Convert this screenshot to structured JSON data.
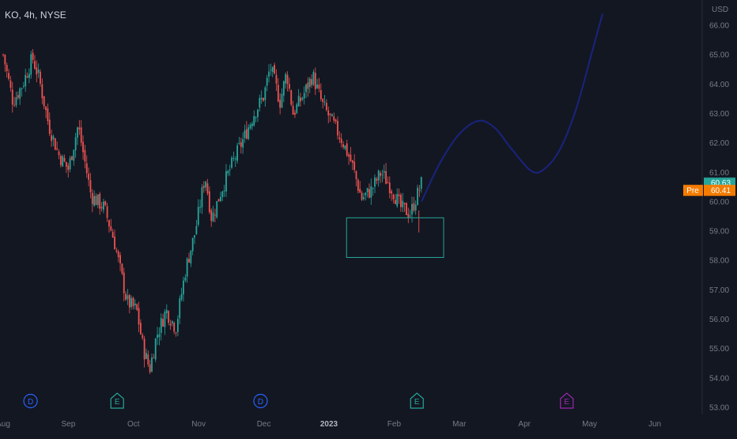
{
  "header": {
    "symbol_title": "KO, 4h, NYSE",
    "currency": "USD"
  },
  "chart_data": {
    "type": "candlestick",
    "symbol": "KO",
    "interval": "4h",
    "exchange": "NYSE",
    "ylim": [
      52.9,
      66.4
    ],
    "y_ticks": [
      "66.00",
      "65.00",
      "64.00",
      "63.00",
      "62.00",
      "61.00",
      "60.00",
      "59.00",
      "58.00",
      "57.00",
      "56.00",
      "55.00",
      "54.00",
      "53.00"
    ],
    "x_ticks": [
      {
        "label": "Aug",
        "x": 0
      },
      {
        "label": "Sep",
        "x": 1
      },
      {
        "label": "Oct",
        "x": 2
      },
      {
        "label": "Nov",
        "x": 3
      },
      {
        "label": "Dec",
        "x": 4
      },
      {
        "label": "2023",
        "x": 5,
        "bold": true
      },
      {
        "label": "Feb",
        "x": 6
      },
      {
        "label": "Mar",
        "x": 7
      },
      {
        "label": "Apr",
        "x": 8
      },
      {
        "label": "May",
        "x": 9
      },
      {
        "label": "Jun",
        "x": 10
      }
    ],
    "close_path": [
      [
        0.0,
        65.0
      ],
      [
        0.15,
        63.4
      ],
      [
        0.3,
        64.0
      ],
      [
        0.45,
        64.9
      ],
      [
        0.55,
        64.2
      ],
      [
        0.7,
        62.6
      ],
      [
        0.85,
        61.6
      ],
      [
        1.0,
        61.1
      ],
      [
        1.15,
        62.6
      ],
      [
        1.35,
        60.2
      ],
      [
        1.55,
        59.8
      ],
      [
        1.7,
        58.7
      ],
      [
        1.9,
        56.6
      ],
      [
        2.05,
        56.3
      ],
      [
        2.15,
        55.0
      ],
      [
        2.25,
        54.3
      ],
      [
        2.35,
        55.4
      ],
      [
        2.5,
        56.3
      ],
      [
        2.65,
        55.7
      ],
      [
        2.8,
        57.7
      ],
      [
        2.95,
        59.0
      ],
      [
        3.1,
        60.9
      ],
      [
        3.2,
        59.4
      ],
      [
        3.35,
        60.4
      ],
      [
        3.5,
        61.2
      ],
      [
        3.7,
        62.2
      ],
      [
        3.85,
        63.0
      ],
      [
        4.0,
        63.6
      ],
      [
        4.1,
        64.6
      ],
      [
        4.25,
        63.4
      ],
      [
        4.35,
        64.4
      ],
      [
        4.45,
        63.0
      ],
      [
        4.6,
        63.6
      ],
      [
        4.75,
        64.3
      ],
      [
        4.9,
        63.3
      ],
      [
        5.05,
        62.7
      ],
      [
        5.2,
        62.1
      ],
      [
        5.35,
        61.3
      ],
      [
        5.5,
        60.1
      ],
      [
        5.65,
        60.4
      ],
      [
        5.8,
        61.0
      ],
      [
        5.95,
        60.5
      ],
      [
        6.1,
        59.8
      ],
      [
        6.25,
        59.6
      ],
      [
        6.35,
        60.2
      ],
      [
        6.42,
        60.63
      ]
    ],
    "last_price": "60.63",
    "premarket": {
      "label": "Pre",
      "value": "60.41"
    },
    "projection": [
      [
        6.42,
        60.0
      ],
      [
        6.7,
        61.3
      ],
      [
        7.0,
        62.3
      ],
      [
        7.3,
        62.75
      ],
      [
        7.55,
        62.5
      ],
      [
        7.8,
        61.8
      ],
      [
        8.1,
        61.05
      ],
      [
        8.3,
        61.1
      ],
      [
        8.55,
        61.8
      ],
      [
        8.8,
        63.2
      ],
      [
        9.05,
        65.2
      ],
      [
        9.2,
        66.4
      ]
    ],
    "zone": {
      "x0": 5.27,
      "x1": 6.76,
      "y_top": 59.45,
      "y_bottom": 58.1
    },
    "events": [
      {
        "label": "D",
        "x": 0.42,
        "color": "#2962ff"
      },
      {
        "label": "E",
        "x": 1.75,
        "color": "#26a69a"
      },
      {
        "label": "D",
        "x": 3.95,
        "color": "#2962ff"
      },
      {
        "label": "E",
        "x": 6.35,
        "color": "#26a69a"
      },
      {
        "label": "E",
        "x": 8.65,
        "color": "#9c27b0"
      }
    ],
    "colors": {
      "background": "#131722",
      "up": "#26a69a",
      "down": "#ef5350",
      "projection": "#1a237e",
      "zone": "#26a69a",
      "last_price_bg": "#26a69a",
      "premarket_bg": "#f57c00",
      "axis_text": "#787b86"
    }
  }
}
